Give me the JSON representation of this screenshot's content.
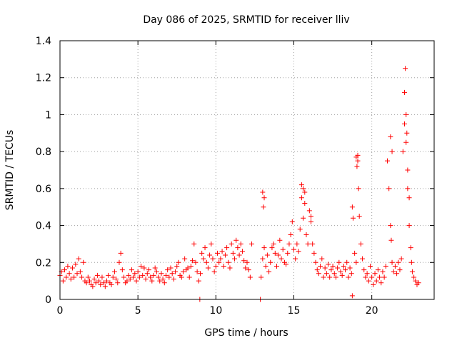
{
  "chart_data": {
    "type": "scatter",
    "title": "Day 086 of 2025, SRMTID for receiver lliv",
    "xlabel": "GPS time / hours",
    "ylabel": "SRMTID / TECUs",
    "xlim": [
      0,
      24
    ],
    "ylim": [
      0,
      1.4
    ],
    "x_ticks": [
      0,
      5,
      10,
      15,
      20
    ],
    "x_tick_labels": [
      "0",
      "5",
      "10",
      "15",
      "20"
    ],
    "y_ticks": [
      0,
      0.2,
      0.4,
      0.6,
      0.8,
      1.0,
      1.2,
      1.4
    ],
    "y_tick_labels": [
      "0",
      "0.2",
      "0.4",
      "0.6",
      "0.8",
      "1",
      "1.2",
      "1.4"
    ],
    "grid": true,
    "marker": "plus",
    "series": [
      {
        "name": "SRMTID",
        "color": "#ff0000",
        "x": [
          0.0,
          0.1,
          0.2,
          0.3,
          0.4,
          0.5,
          0.6,
          0.7,
          0.8,
          0.9,
          1.0,
          1.1,
          1.2,
          1.3,
          1.4,
          1.5,
          1.6,
          1.7,
          1.8,
          1.9,
          2.0,
          2.1,
          2.2,
          2.3,
          2.4,
          2.5,
          2.6,
          2.7,
          2.8,
          2.9,
          3.0,
          3.1,
          3.2,
          3.3,
          3.4,
          3.5,
          3.6,
          3.7,
          3.8,
          3.9,
          4.0,
          4.1,
          4.2,
          4.3,
          4.4,
          4.5,
          4.6,
          4.7,
          4.8,
          4.9,
          5.0,
          5.1,
          5.2,
          5.3,
          5.4,
          5.5,
          5.6,
          5.7,
          5.8,
          5.9,
          6.0,
          6.1,
          6.2,
          6.3,
          6.4,
          6.5,
          6.6,
          6.7,
          6.8,
          6.9,
          7.0,
          7.1,
          7.2,
          7.3,
          7.4,
          7.5,
          7.6,
          7.7,
          7.8,
          7.9,
          8.0,
          8.1,
          8.2,
          8.3,
          8.4,
          8.5,
          8.6,
          8.7,
          8.8,
          8.9,
          9.0,
          9.1,
          9.2,
          9.3,
          9.4,
          9.5,
          9.6,
          9.7,
          9.8,
          9.9,
          10.0,
          10.1,
          10.2,
          10.3,
          10.4,
          10.5,
          10.6,
          10.7,
          10.8,
          10.9,
          11.0,
          11.1,
          11.2,
          11.3,
          11.4,
          11.5,
          11.6,
          11.7,
          11.8,
          11.9,
          12.0,
          12.1,
          12.2,
          12.3,
          12.9,
          13.0,
          13.05,
          13.1,
          13.2,
          13.3,
          13.4,
          13.5,
          13.6,
          13.7,
          13.8,
          13.9,
          14.0,
          14.1,
          14.2,
          14.3,
          14.4,
          14.5,
          14.6,
          14.7,
          14.8,
          14.9,
          15.0,
          15.1,
          15.2,
          15.3,
          15.4,
          15.5,
          15.6,
          15.7,
          15.8,
          15.9,
          16.0,
          16.1,
          16.2,
          16.3,
          16.4,
          16.5,
          16.6,
          16.7,
          16.8,
          16.9,
          17.0,
          17.1,
          17.2,
          17.3,
          17.4,
          17.5,
          17.6,
          17.7,
          17.8,
          17.9,
          18.0,
          18.1,
          18.2,
          18.3,
          18.4,
          18.5,
          18.6,
          18.7,
          18.75,
          18.8,
          18.9,
          19.0,
          19.05,
          19.1,
          19.15,
          19.2,
          19.3,
          19.4,
          19.5,
          19.6,
          19.7,
          19.8,
          19.9,
          20.0,
          20.1,
          20.2,
          20.3,
          20.4,
          20.5,
          20.6,
          20.7,
          20.8,
          20.9,
          21.0,
          21.1,
          21.2,
          21.25,
          21.3,
          21.4,
          21.5,
          21.6,
          21.7,
          21.8,
          21.9,
          22.0,
          22.1,
          22.15,
          22.2,
          22.25,
          22.3,
          22.4,
          22.5,
          22.55,
          22.6,
          22.7,
          22.8,
          22.9,
          23.0,
          8.97,
          12.85,
          18.75,
          13.0,
          13.1,
          15.5,
          15.6,
          15.7,
          16.1,
          19.0,
          19.1,
          21.2,
          21.3,
          22.1,
          22.2,
          22.3,
          22.4
        ],
        "y": [
          0.13,
          0.15,
          0.1,
          0.16,
          0.12,
          0.18,
          0.14,
          0.11,
          0.17,
          0.12,
          0.19,
          0.14,
          0.22,
          0.15,
          0.12,
          0.2,
          0.1,
          0.09,
          0.12,
          0.1,
          0.08,
          0.07,
          0.11,
          0.09,
          0.13,
          0.1,
          0.08,
          0.12,
          0.09,
          0.07,
          0.1,
          0.13,
          0.09,
          0.08,
          0.12,
          0.15,
          0.11,
          0.09,
          0.2,
          0.25,
          0.16,
          0.12,
          0.09,
          0.1,
          0.13,
          0.11,
          0.16,
          0.12,
          0.14,
          0.1,
          0.15,
          0.12,
          0.18,
          0.13,
          0.17,
          0.11,
          0.14,
          0.16,
          0.12,
          0.1,
          0.13,
          0.17,
          0.15,
          0.12,
          0.1,
          0.14,
          0.11,
          0.09,
          0.13,
          0.16,
          0.12,
          0.17,
          0.14,
          0.11,
          0.15,
          0.18,
          0.2,
          0.13,
          0.12,
          0.15,
          0.22,
          0.16,
          0.17,
          0.12,
          0.18,
          0.21,
          0.3,
          0.2,
          0.15,
          0.1,
          0.14,
          0.25,
          0.22,
          0.28,
          0.2,
          0.17,
          0.24,
          0.3,
          0.22,
          0.15,
          0.18,
          0.25,
          0.2,
          0.22,
          0.26,
          0.18,
          0.24,
          0.28,
          0.2,
          0.17,
          0.3,
          0.25,
          0.22,
          0.32,
          0.28,
          0.24,
          0.3,
          0.26,
          0.21,
          0.17,
          0.2,
          0.16,
          0.12,
          0.3,
          0.12,
          0.22,
          0.5,
          0.28,
          0.18,
          0.24,
          0.15,
          0.2,
          0.28,
          0.3,
          0.25,
          0.18,
          0.24,
          0.32,
          0.22,
          0.27,
          0.2,
          0.19,
          0.25,
          0.3,
          0.35,
          0.42,
          0.27,
          0.22,
          0.3,
          0.26,
          0.38,
          0.55,
          0.44,
          0.58,
          0.35,
          0.3,
          0.48,
          0.42,
          0.3,
          0.25,
          0.2,
          0.16,
          0.14,
          0.18,
          0.22,
          0.12,
          0.17,
          0.14,
          0.19,
          0.12,
          0.16,
          0.18,
          0.14,
          0.12,
          0.17,
          0.2,
          0.15,
          0.13,
          0.18,
          0.16,
          0.2,
          0.12,
          0.17,
          0.14,
          0.5,
          0.44,
          0.25,
          0.2,
          0.72,
          0.78,
          0.6,
          0.45,
          0.3,
          0.22,
          0.16,
          0.12,
          0.14,
          0.1,
          0.18,
          0.12,
          0.08,
          0.14,
          0.1,
          0.16,
          0.12,
          0.09,
          0.15,
          0.12,
          0.18,
          0.75,
          0.6,
          0.4,
          0.32,
          0.2,
          0.15,
          0.18,
          0.14,
          0.2,
          0.16,
          0.22,
          0.8,
          1.12,
          1.25,
          1.0,
          0.9,
          0.7,
          0.4,
          0.28,
          0.2,
          0.15,
          0.12,
          0.1,
          0.08,
          0.09,
          0.0,
          0.0,
          0.02,
          0.58,
          0.55,
          0.62,
          0.6,
          0.52,
          0.45,
          0.77,
          0.75,
          0.88,
          0.8,
          0.95,
          0.85,
          0.6,
          0.55
        ]
      }
    ]
  }
}
